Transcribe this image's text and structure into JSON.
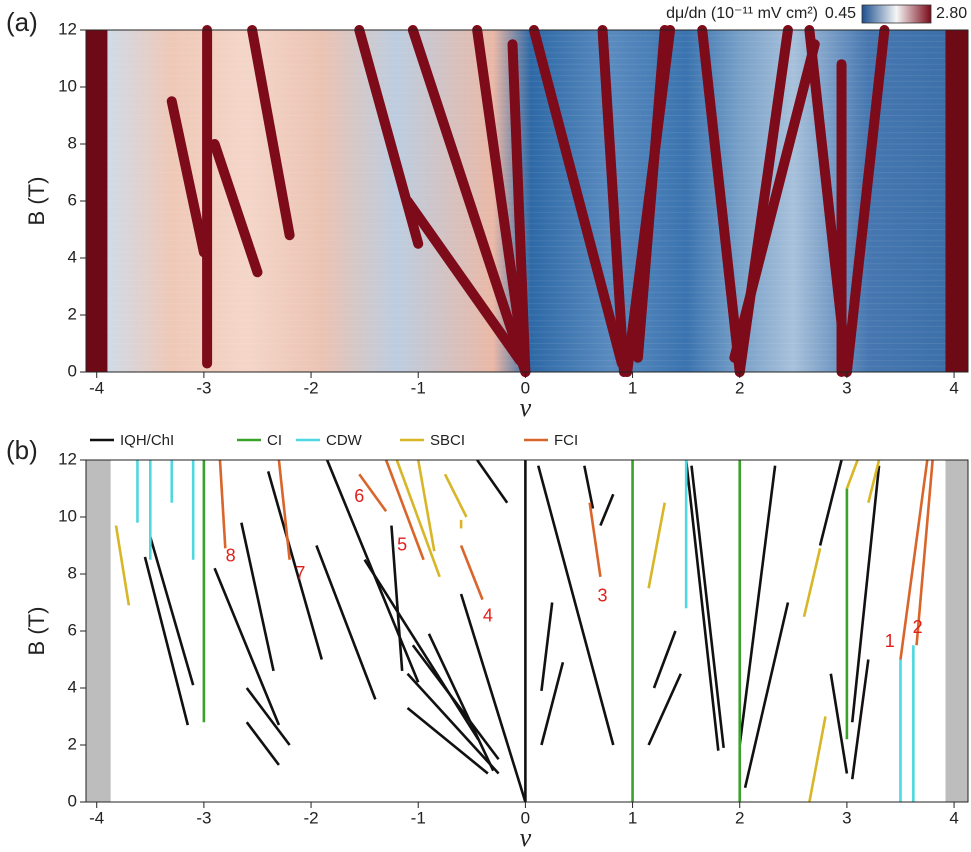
{
  "chart_data": [
    {
      "type": "heatmap",
      "panel_label": "(a)",
      "xlabel": "ν",
      "ylabel": "B (T)",
      "xlim": [
        -4.1,
        4.13
      ],
      "ylim": [
        0,
        12
      ],
      "xticks": [
        -4,
        -3,
        -2,
        -1,
        0,
        1,
        2,
        3,
        4
      ],
      "yticks": [
        0,
        2,
        4,
        6,
        8,
        10,
        12
      ],
      "colorbar_label": "dμ/dn (10⁻¹¹ mV cm²)",
      "colorbar_ticks": [
        0.45,
        2.8
      ],
      "colorbar_tick_labels": [
        "0.45",
        "2.80"
      ],
      "colormap": [
        "#1c4f8f",
        "#f6f6f6",
        "#7a0a18"
      ],
      "background": [
        {
          "x": -3.9,
          "color": "#cfdbe8"
        },
        {
          "x": -3.3,
          "color": "#efc8b7"
        },
        {
          "x": -2.6,
          "color": "#f4d6c9"
        },
        {
          "x": -1.9,
          "color": "#ebc3b3"
        },
        {
          "x": -1.2,
          "color": "#bccde0"
        },
        {
          "x": -0.3,
          "color": "#eab8a6"
        },
        {
          "x": 0.05,
          "color": "#2e69a6"
        },
        {
          "x": 0.8,
          "color": "#5a8bbf"
        },
        {
          "x": 1.5,
          "color": "#3a73af"
        },
        {
          "x": 2.0,
          "color": "#78a0c8"
        },
        {
          "x": 2.5,
          "color": "#a8c1db"
        },
        {
          "x": 3.2,
          "color": "#4677b0"
        },
        {
          "x": 3.9,
          "color": "#3d70a9"
        }
      ],
      "edge_color": "#6d0a16",
      "edges": [
        -3.9,
        3.92
      ],
      "band_color": "#7d0b1a",
      "bands": [
        [
          -2.97,
          12,
          -2.97,
          0.3
        ],
        [
          -2.55,
          12,
          -2.2,
          4.8
        ],
        [
          -3.3,
          9.5,
          -3.0,
          4.2
        ],
        [
          -2.9,
          8.0,
          -2.5,
          3.5
        ],
        [
          -1.55,
          12,
          -1.0,
          4.5
        ],
        [
          -1.05,
          12,
          0,
          0
        ],
        [
          -0.45,
          12,
          0,
          0
        ],
        [
          -0.12,
          11.5,
          0,
          0
        ],
        [
          -1.1,
          6,
          -0.05,
          0.4
        ],
        [
          0.08,
          12,
          0.9,
          0.3
        ],
        [
          0.95,
          0,
          1.35,
          12
        ],
        [
          0.92,
          0,
          0.72,
          12
        ],
        [
          1.05,
          0.5,
          1.3,
          12
        ],
        [
          2.0,
          0,
          1.65,
          12
        ],
        [
          2.0,
          0,
          2.45,
          12
        ],
        [
          1.95,
          0.5,
          2.7,
          11.5
        ],
        [
          3.0,
          0,
          2.65,
          12
        ],
        [
          3.0,
          0,
          3.35,
          12
        ],
        [
          2.95,
          0,
          2.95,
          10.8
        ]
      ]
    },
    {
      "type": "segments",
      "panel_label": "(b)",
      "xlabel": "ν",
      "ylabel": "B (T)",
      "xlim": [
        -4.1,
        4.13
      ],
      "ylim": [
        0,
        12
      ],
      "xticks": [
        -4,
        -3,
        -2,
        -1,
        0,
        1,
        2,
        3,
        4
      ],
      "yticks": [
        0,
        2,
        4,
        6,
        8,
        10,
        12
      ],
      "shade_outside": [
        -3.87,
        3.92
      ],
      "shade_color": "#bdbdbd",
      "series": [
        {
          "name": "IQH/ChI",
          "color": "#111111",
          "segments": [
            [
              0,
              0,
              0,
              12
            ],
            [
              -3.55,
              8.6,
              -3.15,
              2.7
            ],
            [
              -3.5,
              9.3,
              -3.1,
              4.1
            ],
            [
              -2.9,
              8.2,
              -2.3,
              2.7
            ],
            [
              -2.65,
              9.8,
              -2.35,
              4.6
            ],
            [
              -2.6,
              4.0,
              -2.2,
              2.0
            ],
            [
              -2.6,
              2.8,
              -2.3,
              1.3
            ],
            [
              -2.4,
              11.6,
              -1.9,
              5.0
            ],
            [
              -1.95,
              9.0,
              -1.4,
              3.6
            ],
            [
              -1.85,
              12,
              -1.0,
              4.2
            ],
            [
              -1.5,
              8.5,
              -0.44,
              2.2
            ],
            [
              -1.05,
              5.5,
              -0.25,
              1.5
            ],
            [
              -1.1,
              4.5,
              -0.25,
              1.0
            ],
            [
              -1.1,
              3.3,
              -0.35,
              1.0
            ],
            [
              -0.6,
              7.3,
              0,
              0
            ],
            [
              -0.9,
              5.9,
              -0.3,
              1.1
            ],
            [
              -1.25,
              9.7,
              -1.15,
              4.6
            ],
            [
              -0.45,
              12,
              -0.17,
              10.5
            ],
            [
              0.12,
              11.8,
              0.82,
              2.0
            ],
            [
              0.55,
              11.8,
              0.63,
              10.3
            ],
            [
              0.82,
              10.8,
              0.7,
              9.7
            ],
            [
              0.15,
              3.9,
              0.25,
              7.0
            ],
            [
              0.15,
              2.0,
              0.35,
              4.9
            ],
            [
              1.15,
              2.0,
              1.45,
              4.5
            ],
            [
              1.2,
              4.0,
              1.4,
              6.0
            ],
            [
              1.55,
              11.8,
              1.85,
              1.9
            ],
            [
              1.5,
              12,
              1.8,
              1.8
            ],
            [
              2.33,
              11.8,
              2.0,
              2.0
            ],
            [
              2.05,
              0.5,
              2.45,
              7.0
            ],
            [
              2.75,
              9.0,
              2.95,
              12
            ],
            [
              2.85,
              4.5,
              3.0,
              1.0
            ],
            [
              3.05,
              0.8,
              3.2,
              5.0
            ],
            [
              3.3,
              11.8,
              3.05,
              2.8
            ]
          ]
        },
        {
          "name": "CI",
          "color": "#3aa12a",
          "segments": [
            [
              -3.0,
              2.8,
              -3.0,
              12
            ],
            [
              1.0,
              0,
              1.0,
              12
            ],
            [
              2.0,
              0,
              2.0,
              12
            ],
            [
              3.0,
              2.2,
              3.0,
              11.0
            ]
          ]
        },
        {
          "name": "CDW",
          "color": "#4fd8e0",
          "segments": [
            [
              -3.62,
              9.8,
              -3.62,
              12
            ],
            [
              -3.5,
              8.5,
              -3.5,
              12
            ],
            [
              -3.3,
              10.5,
              -3.3,
              12
            ],
            [
              -3.1,
              8.5,
              -3.1,
              12
            ],
            [
              1.5,
              6.8,
              1.5,
              12
            ],
            [
              3.5,
              0,
              3.5,
              5.0
            ],
            [
              3.62,
              0,
              3.62,
              5.5
            ]
          ]
        },
        {
          "name": "SBCI",
          "color": "#d8b628",
          "segments": [
            [
              -3.82,
              9.7,
              -3.7,
              6.9
            ],
            [
              -1.2,
              12,
              -0.8,
              7.9
            ],
            [
              -1.0,
              12,
              -0.85,
              8.8
            ],
            [
              -0.75,
              11.5,
              -0.55,
              10.0
            ],
            [
              -0.6,
              9.9,
              -0.6,
              9.6
            ],
            [
              1.15,
              7.5,
              1.3,
              10.5
            ],
            [
              2.65,
              0,
              2.8,
              3.0
            ],
            [
              2.6,
              6.5,
              2.75,
              8.9
            ],
            [
              3.0,
              11.0,
              3.1,
              12
            ],
            [
              3.2,
              10.5,
              3.3,
              12
            ]
          ]
        },
        {
          "name": "FCI",
          "color": "#d9652a",
          "segments": [
            [
              -2.85,
              12,
              -2.8,
              8.9
            ],
            [
              -2.3,
              12,
              -2.2,
              8.5
            ],
            [
              -1.55,
              11.5,
              -1.3,
              10.2
            ],
            [
              -1.3,
              12,
              -0.95,
              8.5
            ],
            [
              -0.6,
              9.0,
              -0.4,
              7.1
            ],
            [
              0.6,
              10.5,
              0.7,
              7.9
            ],
            [
              3.5,
              5.0,
              3.75,
              12
            ],
            [
              3.65,
              5.5,
              3.8,
              12
            ]
          ]
        }
      ],
      "annotations": [
        {
          "text": "8",
          "x": -2.75,
          "y": 8.6
        },
        {
          "text": "7",
          "x": -2.1,
          "y": 8.0
        },
        {
          "text": "6",
          "x": -1.55,
          "y": 10.7
        },
        {
          "text": "5",
          "x": -1.15,
          "y": 9.0
        },
        {
          "text": "4",
          "x": -0.35,
          "y": 6.5
        },
        {
          "text": "3",
          "x": 0.72,
          "y": 7.2
        },
        {
          "text": "1",
          "x": 3.4,
          "y": 5.6
        },
        {
          "text": "2",
          "x": 3.66,
          "y": 6.1
        }
      ]
    }
  ]
}
